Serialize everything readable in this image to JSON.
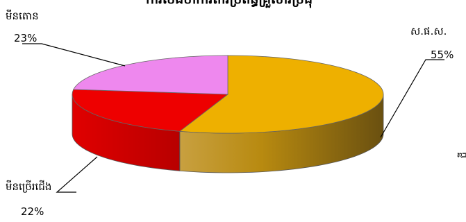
{
  "chart_data": {
    "type": "pie",
    "title": "ការចែងចាំការពារប្រព័ន្ធគ្រួសារប្រជុំ",
    "slices": [
      {
        "label": "ស.ផ.ស.",
        "value": 55,
        "display": "55%",
        "color": "#EEB000",
        "side_color": "#C08800"
      },
      {
        "label": "មីនច្រើរជើង",
        "value": 22,
        "display": "22%",
        "color": "#EE0000",
        "side_color": "#CC0000"
      },
      {
        "label": "មីនតោន",
        "value": 23,
        "display": "23%",
        "color": "#EE88EE",
        "side_color": "#C060C0"
      }
    ],
    "edge_text": "ជី"
  }
}
